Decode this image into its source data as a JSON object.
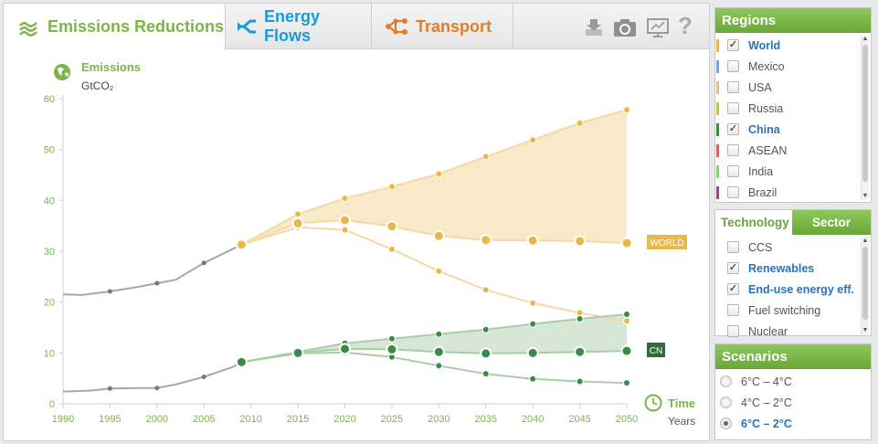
{
  "tabs": [
    {
      "label": "Emissions Reductions",
      "color": "#7ab648",
      "active": true
    },
    {
      "label": "Energy Flows",
      "color": "#1b9ad6",
      "active": false
    },
    {
      "label": "Transport",
      "color": "#e07d27",
      "active": false
    }
  ],
  "toolbar": {
    "icons": [
      "download-icon",
      "camera-icon",
      "presentation-icon",
      "help-icon"
    ],
    "help_glyph": "?"
  },
  "chart": {
    "title": "Emissions",
    "unit": "GtCO₂",
    "time_label": "Time",
    "years_label": "Years",
    "world_tag": "WORLD",
    "cn_tag": "CN"
  },
  "chart_data": {
    "type": "area",
    "x_ticks": [
      1990,
      1995,
      2000,
      2005,
      2010,
      2015,
      2020,
      2025,
      2030,
      2035,
      2040,
      2045,
      2050
    ],
    "y_ticks": [
      0,
      10,
      20,
      30,
      40,
      50,
      60
    ],
    "ylim": [
      0,
      60
    ],
    "xlim": [
      1990,
      2050
    ],
    "colors": {
      "world": "#e8b84a",
      "world_fill": "#f8e9c8",
      "world_light": "#f5d9a3",
      "china": "#3a8b48",
      "china_fill": "#d6e7d5",
      "china_light": "#a9cda7",
      "history": "#a8a8a8"
    },
    "world_history": [
      [
        1990,
        21.5
      ],
      [
        1992,
        21.4
      ],
      [
        1995,
        22.1
      ],
      [
        1998,
        23.0
      ],
      [
        2000,
        23.7
      ],
      [
        2002,
        24.4
      ],
      [
        2005,
        27.7
      ],
      [
        2008,
        30.4
      ],
      [
        2009,
        31.3
      ]
    ],
    "china_history": [
      [
        1990,
        2.4
      ],
      [
        1993,
        2.6
      ],
      [
        1995,
        3.0
      ],
      [
        1998,
        3.1
      ],
      [
        2000,
        3.1
      ],
      [
        2002,
        3.8
      ],
      [
        2005,
        5.3
      ],
      [
        2008,
        7.2
      ],
      [
        2009,
        8.2
      ]
    ],
    "world_upper": [
      [
        2009,
        31.3
      ],
      [
        2015,
        37.3
      ],
      [
        2020,
        40.4
      ],
      [
        2025,
        42.7
      ],
      [
        2030,
        45.2
      ],
      [
        2035,
        48.6
      ],
      [
        2040,
        51.9
      ],
      [
        2045,
        55.2
      ],
      [
        2050,
        57.8
      ]
    ],
    "world_selected": [
      [
        2009,
        31.3
      ],
      [
        2015,
        35.5
      ],
      [
        2020,
        36.1
      ],
      [
        2025,
        34.9
      ],
      [
        2030,
        33.0
      ],
      [
        2035,
        32.2
      ],
      [
        2040,
        32.1
      ],
      [
        2045,
        32.0
      ],
      [
        2050,
        31.6
      ]
    ],
    "world_lower": [
      [
        2009,
        31.3
      ],
      [
        2015,
        34.7
      ],
      [
        2020,
        34.2
      ],
      [
        2025,
        30.4
      ],
      [
        2030,
        26.1
      ],
      [
        2035,
        22.4
      ],
      [
        2040,
        19.8
      ],
      [
        2045,
        17.9
      ],
      [
        2050,
        16.3
      ]
    ],
    "china_upper": [
      [
        2009,
        8.2
      ],
      [
        2015,
        10.2
      ],
      [
        2020,
        11.9
      ],
      [
        2025,
        12.8
      ],
      [
        2030,
        13.7
      ],
      [
        2035,
        14.6
      ],
      [
        2040,
        15.7
      ],
      [
        2045,
        16.7
      ],
      [
        2050,
        17.6
      ]
    ],
    "china_selected": [
      [
        2009,
        8.2
      ],
      [
        2015,
        10.0
      ],
      [
        2020,
        10.8
      ],
      [
        2025,
        10.7
      ],
      [
        2030,
        10.2
      ],
      [
        2035,
        9.9
      ],
      [
        2040,
        10.0
      ],
      [
        2045,
        10.2
      ],
      [
        2050,
        10.4
      ]
    ],
    "china_lower": [
      [
        2009,
        8.2
      ],
      [
        2015,
        9.9
      ],
      [
        2020,
        10.1
      ],
      [
        2025,
        9.2
      ],
      [
        2030,
        7.5
      ],
      [
        2035,
        5.9
      ],
      [
        2040,
        4.9
      ],
      [
        2045,
        4.4
      ],
      [
        2050,
        4.1
      ]
    ]
  },
  "regions": {
    "header": "Regions",
    "items": [
      {
        "label": "World",
        "color": "#e8b84a",
        "checked": true
      },
      {
        "label": "Mexico",
        "color": "#7fa1d2",
        "checked": false
      },
      {
        "label": "USA",
        "color": "#e5c08e",
        "checked": false
      },
      {
        "label": "Russia",
        "color": "#b6c95a",
        "checked": false
      },
      {
        "label": "China",
        "color": "#3a8b48",
        "checked": true
      },
      {
        "label": "ASEAN",
        "color": "#e06060",
        "checked": false
      },
      {
        "label": "India",
        "color": "#8fcf79",
        "checked": false
      },
      {
        "label": "Brazil",
        "color": "#8a4d7d",
        "checked": false
      }
    ]
  },
  "tech": {
    "tab_technology": "Technology",
    "tab_sector": "Sector",
    "items": [
      {
        "label": "CCS",
        "checked": false
      },
      {
        "label": "Renewables",
        "checked": true
      },
      {
        "label": "End-use energy eff.",
        "checked": true
      },
      {
        "label": "Fuel switching",
        "checked": false
      },
      {
        "label": "Nuclear",
        "checked": false
      }
    ]
  },
  "scenarios": {
    "header": "Scenarios",
    "items": [
      {
        "label": "6°C – 4°C",
        "selected": false
      },
      {
        "label": "4°C – 2°C",
        "selected": false
      },
      {
        "label": "6°C – 2°C",
        "selected": true
      }
    ]
  }
}
